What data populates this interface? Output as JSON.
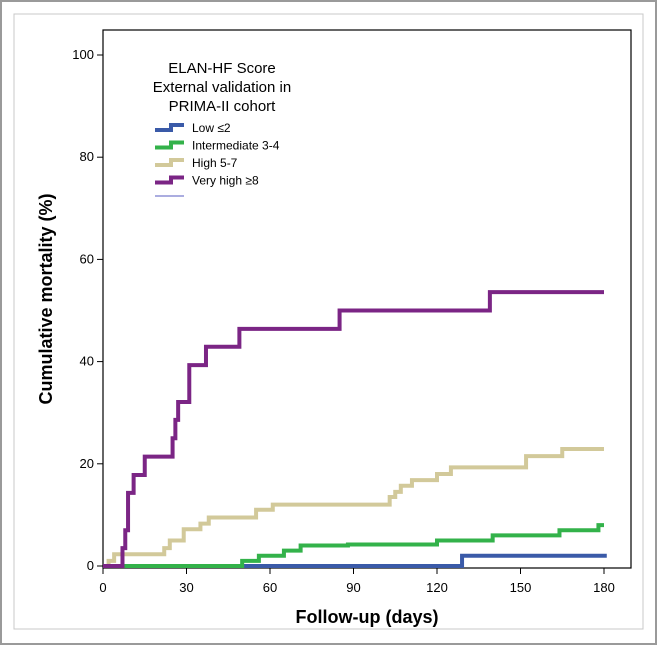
{
  "chart_data": {
    "type": "line",
    "step": true,
    "title": "",
    "xlabel": "Follow-up (days)",
    "ylabel": "Cumulative mortality (%)",
    "xlim": [
      0,
      180
    ],
    "ylim": [
      0,
      100
    ],
    "xticks": [
      0,
      30,
      60,
      90,
      120,
      150,
      180
    ],
    "yticks": [
      0,
      20,
      40,
      60,
      80,
      100
    ],
    "legend": {
      "title_lines": [
        "ELAN-HF Score",
        "External validation in",
        "PRIMA-II cohort"
      ],
      "position": "top-left"
    },
    "series": [
      {
        "name": "Low ≤2",
        "color": "#3a5aa8",
        "points": [
          [
            0,
            0
          ],
          [
            129,
            0
          ],
          [
            129,
            2
          ],
          [
            181,
            2
          ]
        ]
      },
      {
        "name": "Intermediate 3-4",
        "color": "#33b24a",
        "points": [
          [
            0,
            0
          ],
          [
            50,
            0
          ],
          [
            50,
            1
          ],
          [
            56,
            1
          ],
          [
            56,
            2
          ],
          [
            65,
            2
          ],
          [
            65,
            3
          ],
          [
            71,
            3
          ],
          [
            71,
            4
          ],
          [
            88,
            4
          ],
          [
            88,
            4.2
          ],
          [
            120,
            4.2
          ],
          [
            120,
            5
          ],
          [
            140,
            5
          ],
          [
            140,
            6
          ],
          [
            164,
            6
          ],
          [
            164,
            7
          ],
          [
            178,
            7
          ],
          [
            178,
            8
          ],
          [
            180,
            8
          ]
        ]
      },
      {
        "name": "High 5-7",
        "color": "#d2c99a",
        "points": [
          [
            0,
            0
          ],
          [
            2,
            0
          ],
          [
            2,
            1
          ],
          [
            4,
            1
          ],
          [
            4,
            2.3
          ],
          [
            22,
            2.3
          ],
          [
            22,
            3.5
          ],
          [
            24,
            3.5
          ],
          [
            24,
            5
          ],
          [
            29,
            5
          ],
          [
            29,
            7.2
          ],
          [
            35,
            7.2
          ],
          [
            35,
            8.3
          ],
          [
            38,
            8.3
          ],
          [
            38,
            9.5
          ],
          [
            55,
            9.5
          ],
          [
            55,
            11
          ],
          [
            61,
            11
          ],
          [
            61,
            12
          ],
          [
            103,
            12
          ],
          [
            103,
            13.5
          ],
          [
            105,
            13.5
          ],
          [
            105,
            14.5
          ],
          [
            107,
            14.5
          ],
          [
            107,
            15.7
          ],
          [
            111,
            15.7
          ],
          [
            111,
            16.8
          ],
          [
            120,
            16.8
          ],
          [
            120,
            18
          ],
          [
            125,
            18
          ],
          [
            125,
            19.3
          ],
          [
            152,
            19.3
          ],
          [
            152,
            21.5
          ],
          [
            165,
            21.5
          ],
          [
            165,
            22.9
          ],
          [
            180,
            22.9
          ]
        ]
      },
      {
        "name": "Very high ≥8",
        "color": "#7b2585",
        "points": [
          [
            0,
            0
          ],
          [
            7,
            0
          ],
          [
            7,
            3.5
          ],
          [
            8,
            3.5
          ],
          [
            8,
            7
          ],
          [
            9,
            7
          ],
          [
            9,
            14.3
          ],
          [
            11,
            14.3
          ],
          [
            11,
            17.8
          ],
          [
            15,
            17.8
          ],
          [
            15,
            21.4
          ],
          [
            25,
            21.4
          ],
          [
            25,
            25
          ],
          [
            26,
            25
          ],
          [
            26,
            28.6
          ],
          [
            27,
            28.6
          ],
          [
            27,
            32.1
          ],
          [
            31,
            32.1
          ],
          [
            31,
            39.3
          ],
          [
            37,
            39.3
          ],
          [
            37,
            42.9
          ],
          [
            49,
            42.9
          ],
          [
            49,
            46.4
          ],
          [
            85,
            46.4
          ],
          [
            85,
            50
          ],
          [
            139,
            50
          ],
          [
            139,
            53.6
          ],
          [
            180,
            53.6
          ]
        ]
      }
    ]
  }
}
